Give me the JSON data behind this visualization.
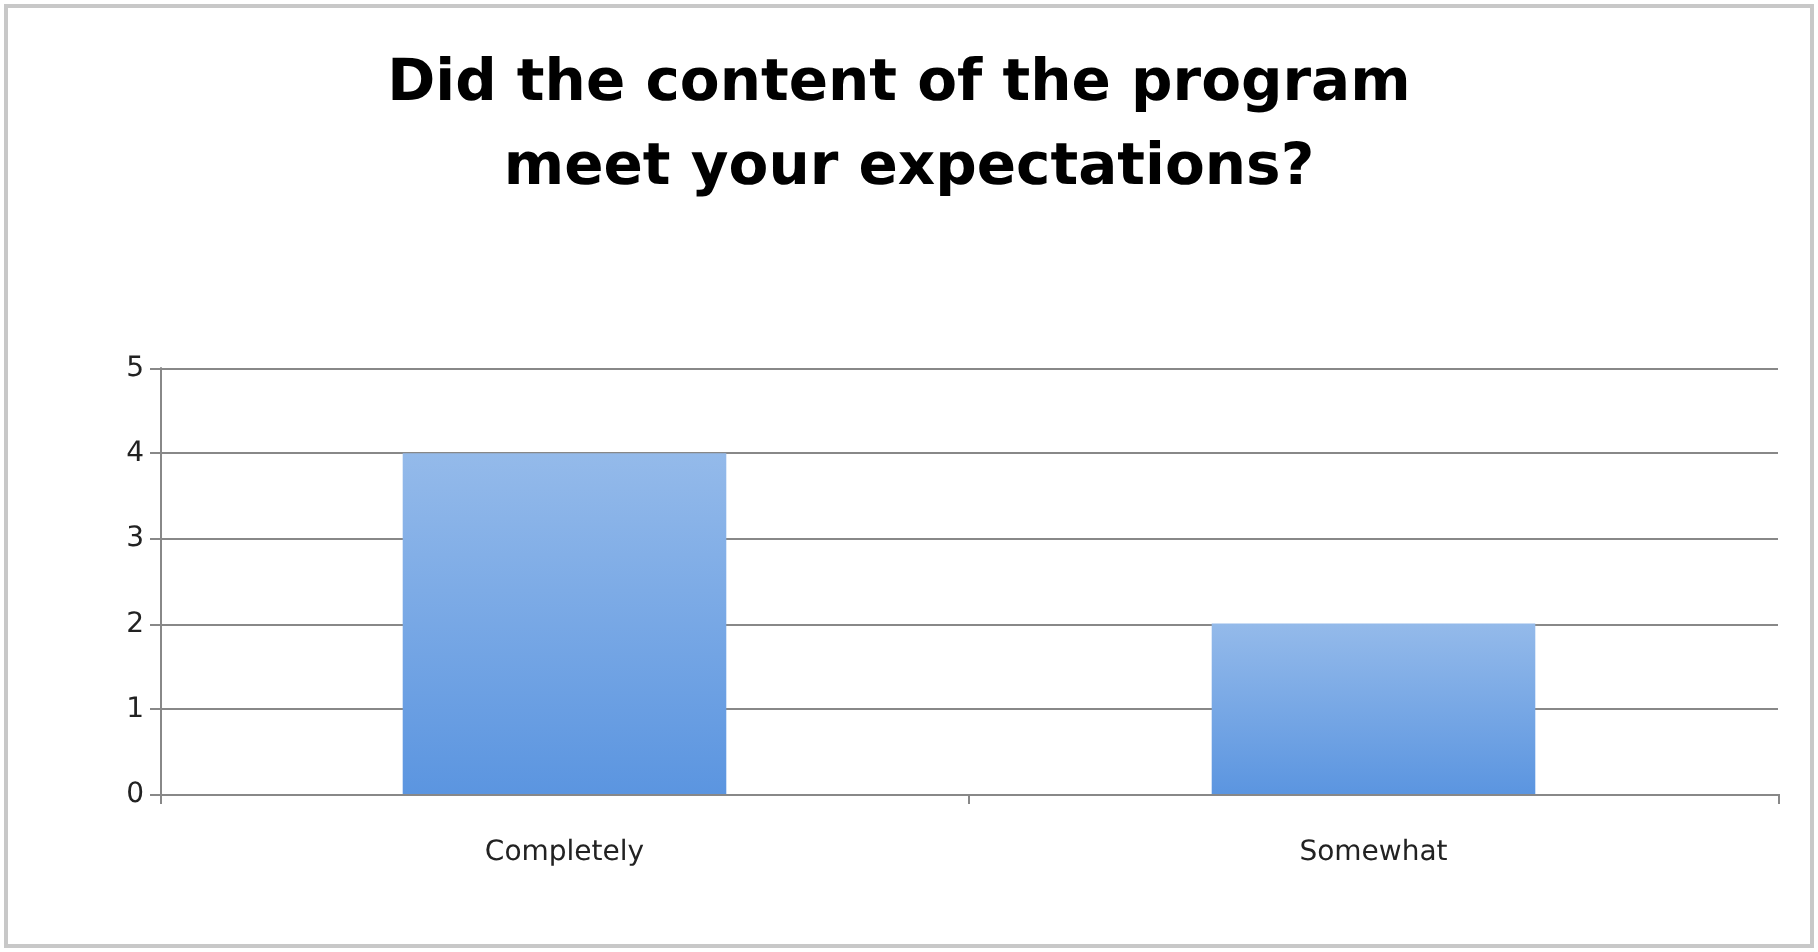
{
  "chart_data": {
    "type": "bar",
    "title": "Did the content of the program meet your expectations?",
    "categories": [
      "Completely",
      "Somewhat"
    ],
    "values": [
      4,
      2
    ],
    "color": "#5b95e0",
    "ylim": [
      0,
      5
    ],
    "yticks": [
      0,
      1,
      2,
      3,
      4,
      5
    ],
    "grid": "y"
  }
}
